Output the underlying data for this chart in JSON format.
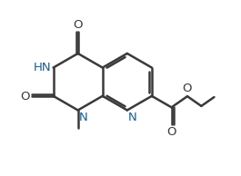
{
  "bg": "#ffffff",
  "lc": "#3a3a3a",
  "hc": "#1a5f8a",
  "lw": 1.8,
  "fs": 9.5,
  "BL": 0.7,
  "xlim": [
    -2.3,
    3.2
  ],
  "ylim": [
    -2.1,
    1.8
  ]
}
